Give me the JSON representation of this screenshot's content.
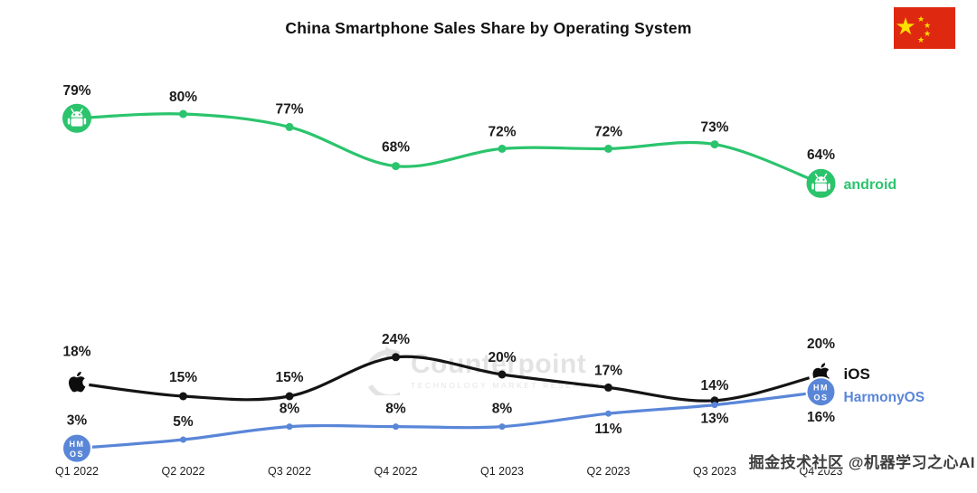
{
  "title": "China Smartphone Sales Share by Operating System",
  "watermarks": {
    "center_text": "Counterpoint",
    "center_subtext": "TECHNOLOGY MARKET RESEARCH",
    "bottom_right": "掘金技术社区 @机器学习之心AI"
  },
  "icons": {
    "flag": "china-flag",
    "android_marker": "android-robot",
    "ios_marker": "apple-logo",
    "harmonyos_marker": "hmos-badge",
    "hmos_badge_lines": [
      "HM",
      "OS"
    ]
  },
  "chart_data": {
    "type": "line",
    "categories": [
      "Q1 2022",
      "Q2 2022",
      "Q3 2022",
      "Q4 2022",
      "Q1 2023",
      "Q2 2023",
      "Q3 2023",
      "Q4 2023"
    ],
    "series": [
      {
        "name": "android",
        "color": "#2bc46d",
        "values": [
          79,
          80,
          77,
          68,
          72,
          72,
          73,
          64
        ]
      },
      {
        "name": "iOS",
        "color": "#141414",
        "values": [
          18,
          15,
          15,
          24,
          20,
          17,
          14,
          20
        ]
      },
      {
        "name": "HarmonyOS",
        "color": "#5a86d8",
        "values": [
          3,
          5,
          8,
          8,
          8,
          11,
          13,
          16
        ]
      }
    ],
    "ylim": [
      0,
      100
    ],
    "grid": false,
    "value_suffix": "%",
    "legend_position": "line-end"
  }
}
